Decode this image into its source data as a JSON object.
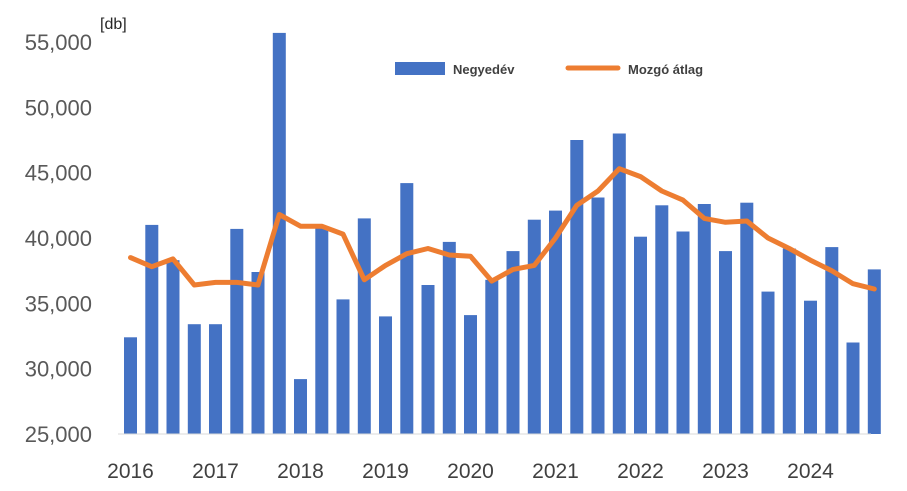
{
  "chart_data": {
    "type": "bar",
    "unit_label": "[db]",
    "ylim": [
      25000,
      55000
    ],
    "y_ticks": [
      25000,
      30000,
      35000,
      40000,
      45000,
      50000,
      55000
    ],
    "y_tick_labels": [
      "25,000",
      "30,000",
      "35,000",
      "40,000",
      "45,000",
      "50,000",
      "55,000"
    ],
    "year_labels": [
      "2016",
      "2017",
      "2018",
      "2019",
      "2020",
      "2021",
      "2022",
      "2023",
      "2024"
    ],
    "categories": [
      "2016 Q1",
      "2016 Q2",
      "2016 Q3",
      "2016 Q4",
      "2017 Q1",
      "2017 Q2",
      "2017 Q3",
      "2017 Q4",
      "2018 Q1",
      "2018 Q2",
      "2018 Q3",
      "2018 Q4",
      "2019 Q1",
      "2019 Q2",
      "2019 Q3",
      "2019 Q4",
      "2020 Q1",
      "2020 Q2",
      "2020 Q3",
      "2020 Q4",
      "2021 Q1",
      "2021 Q2",
      "2021 Q3",
      "2021 Q4",
      "2022 Q1",
      "2022 Q2",
      "2022 Q3",
      "2022 Q4",
      "2023 Q1",
      "2023 Q2",
      "2023 Q3",
      "2023 Q4",
      "2024 Q1",
      "2024 Q2",
      "2024 Q3",
      "2024 Q4"
    ],
    "series": [
      {
        "name": "Negyedév",
        "type": "bar",
        "color": "#4472C4",
        "values": [
          32400,
          41000,
          38300,
          33400,
          33400,
          40700,
          37400,
          55700,
          29200,
          40800,
          35300,
          41500,
          34000,
          44200,
          36400,
          39700,
          34100,
          36800,
          39000,
          41400,
          42100,
          47500,
          43100,
          48000,
          40100,
          42500,
          40500,
          42600,
          39000,
          42700,
          35900,
          39200,
          35200,
          39300,
          32000,
          37600
        ]
      },
      {
        "name": "Mozgó átlag",
        "type": "line",
        "color": "#ED7D31",
        "values": [
          38500,
          37800,
          38400,
          36400,
          36600,
          36600,
          36400,
          41800,
          40900,
          40900,
          40300,
          36800,
          37900,
          38800,
          39200,
          38700,
          38600,
          36700,
          37600,
          37900,
          40000,
          42500,
          43600,
          45300,
          44700,
          43600,
          42900,
          41500,
          41200,
          41300,
          40000,
          39200,
          38300,
          37500,
          36500,
          36100
        ]
      }
    ],
    "legend": {
      "position": "top-center"
    }
  }
}
